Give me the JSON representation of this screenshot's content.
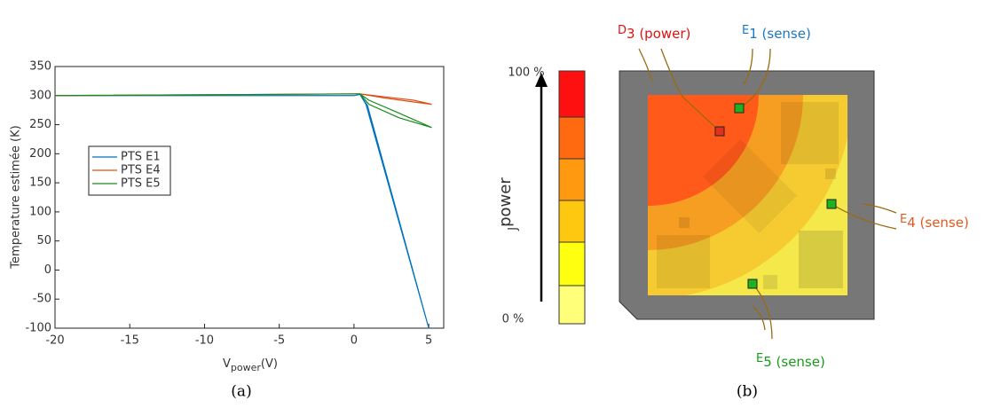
{
  "chart_data": {
    "type": "line",
    "xlabel": "V",
    "xlabel_sub": "power",
    "xlabel_unit": "(V)",
    "ylabel": "Temperature estimée (K)",
    "xlim": [
      -20,
      6
    ],
    "xticks": [
      -20,
      -15,
      -10,
      -5,
      0,
      5
    ],
    "ylim": [
      -100,
      350
    ],
    "yticks": [
      -100,
      -50,
      0,
      50,
      100,
      150,
      200,
      250,
      300,
      350
    ],
    "legend": "left",
    "series": [
      {
        "name": "PTS E1",
        "color": "#0072bd",
        "x": [
          -20,
          0,
          0.4,
          0.8,
          5,
          0.9,
          0.4
        ],
        "values": [
          300,
          300,
          302,
          285,
          -100,
          283,
          302
        ]
      },
      {
        "name": "PTS E4",
        "color": "#d95319",
        "x": [
          -20,
          0.4,
          2,
          4,
          5.2,
          4,
          2,
          0.4
        ],
        "values": [
          300,
          303,
          296,
          289,
          285,
          292,
          298,
          303
        ]
      },
      {
        "name": "PTS E5",
        "color": "#1a8a1a",
        "x": [
          -20,
          0.4,
          1,
          3,
          5.2,
          3,
          1,
          0.4
        ],
        "values": [
          300,
          303,
          285,
          262,
          245,
          270,
          292,
          303
        ]
      }
    ]
  },
  "diagram": {
    "colorbar": {
      "top_label": "100 %",
      "bottom_label": "0 %",
      "label": "J",
      "label_sub": "power"
    },
    "labels": [
      {
        "main": "D",
        "sub": "3 (power)"
      },
      {
        "main": "E",
        "sub": "1 (sense)"
      },
      {
        "main": "E",
        "sub": "4 (sense)"
      },
      {
        "main": "E",
        "sub": "5 (sense)"
      }
    ]
  },
  "captions": [
    "(a)",
    "(b)"
  ]
}
